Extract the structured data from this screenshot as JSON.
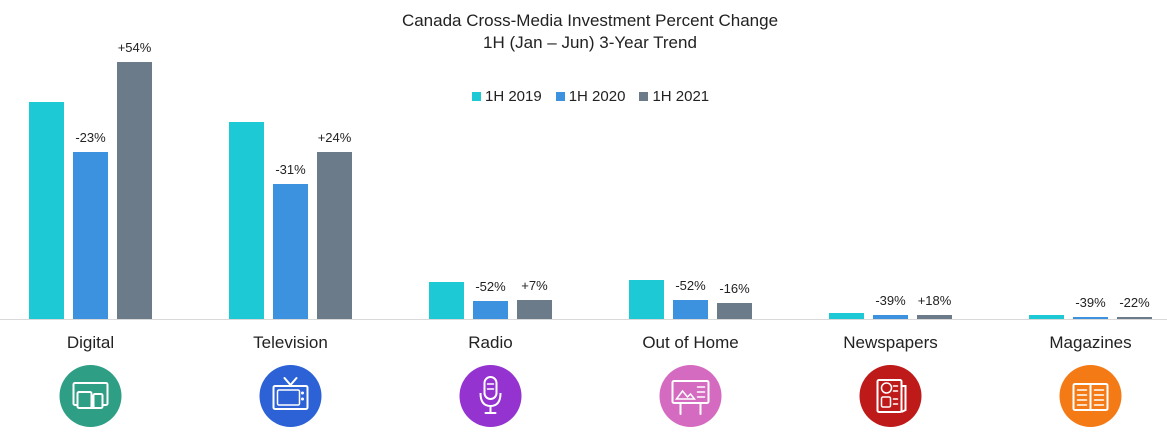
{
  "chart_data": {
    "type": "bar",
    "title": "Canada Cross-Media Investment Percent Change",
    "subtitle": "1H (Jan – Jun) 3-Year Trend",
    "categories": [
      "Digital",
      "Television",
      "Radio",
      "Out of Home",
      "Newspapers",
      "Magazines"
    ],
    "series": [
      {
        "name": "1H 2019",
        "color": "#1ec9d6",
        "values": [
          217,
          197,
          37,
          39,
          6,
          4
        ]
      },
      {
        "name": "1H 2020",
        "color": "#3d92e0",
        "values": [
          167,
          135,
          18,
          19,
          4,
          2
        ]
      },
      {
        "name": "1H 2021",
        "color": "#6b7b89",
        "values": [
          257,
          167,
          19,
          16,
          4,
          2
        ]
      }
    ],
    "data_labels": [
      [
        null,
        "-23%",
        "+54%"
      ],
      [
        null,
        "-31%",
        "+24%"
      ],
      [
        null,
        "-52%",
        "+7%"
      ],
      [
        null,
        "-52%",
        "-16%"
      ],
      [
        null,
        "-39%",
        "+18%"
      ],
      [
        null,
        "-39%",
        "-22%"
      ]
    ],
    "ylim": [
      0,
      290
    ],
    "grid": false,
    "legend_position": "top-center",
    "icons": [
      {
        "name": "digital-devices-icon",
        "color": "#2e9e85"
      },
      {
        "name": "television-icon",
        "color": "#2c62d6"
      },
      {
        "name": "radio-microphone-icon",
        "color": "#9433cf"
      },
      {
        "name": "billboard-icon",
        "color": "#d56bc0"
      },
      {
        "name": "newspaper-icon",
        "color": "#bf1a1a"
      },
      {
        "name": "magazine-icon",
        "color": "#f47a16"
      }
    ]
  }
}
